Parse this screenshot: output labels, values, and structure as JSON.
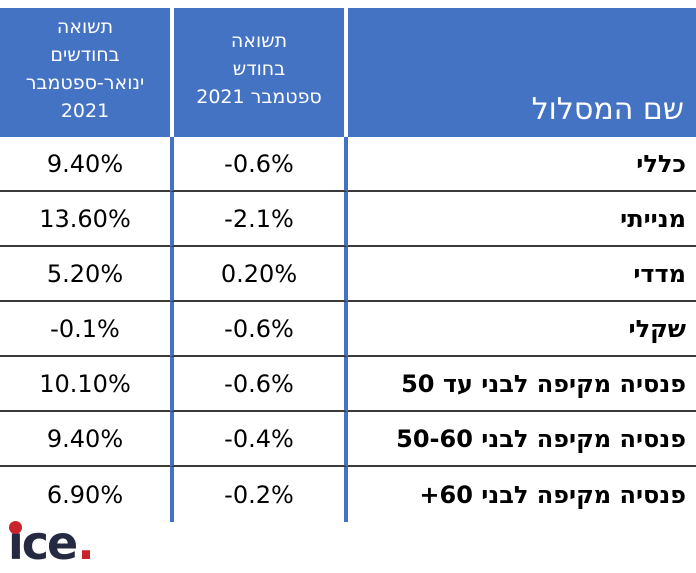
{
  "colors": {
    "header_blue": "#4573C4",
    "row_line_dark": "#3a3a3a",
    "logo_navy": "#252A42",
    "logo_red": "#C9242B"
  },
  "table": {
    "header": {
      "name": "שם המסלול",
      "month": "תשואה\nבחודש\nספטמבר 2021",
      "ytd": "תשואה\nבחודשים\nינואר-ספטמבר\n2021"
    }
  },
  "chart_data": {
    "type": "table",
    "columns": [
      "שם המסלול",
      "תשואה בחודש ספטמבר 2021",
      "תשואה בחודשים ינואר-ספטמבר 2021"
    ],
    "rows": [
      {
        "name": "כללי",
        "month": "-0.6%",
        "ytd": "9.40%"
      },
      {
        "name": "מנייתי",
        "month": "-2.1%",
        "ytd": "13.60%"
      },
      {
        "name": "מדדי",
        "month": "0.20%",
        "ytd": "5.20%"
      },
      {
        "name": "שקלי",
        "month": "-0.6%",
        "ytd": "-0.1%"
      },
      {
        "name": "פנסיה מקיפה לבני עד 50",
        "month": "-0.6%",
        "ytd": "10.10%"
      },
      {
        "name": "פנסיה מקיפה לבני 50-60",
        "month": "-0.4%",
        "ytd": "9.40%"
      },
      {
        "name": "פנסיה מקיפה לבני 60+",
        "month": "-0.2%",
        "ytd": "6.90%"
      }
    ]
  },
  "logo": {
    "text": "ice",
    "period": "."
  }
}
